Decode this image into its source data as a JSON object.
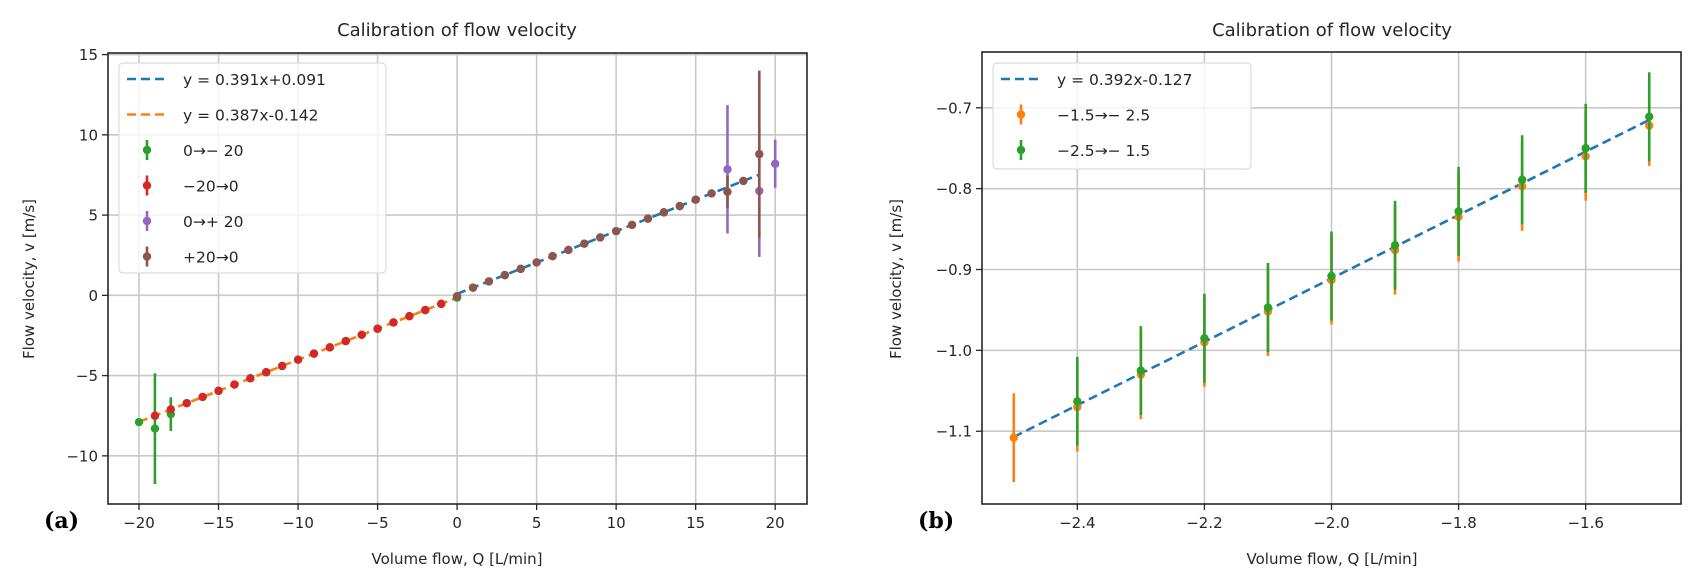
{
  "chart_data": [
    {
      "panel_label": "(a)",
      "type": "scatter",
      "title": "Calibration of flow velocity",
      "xlabel": "Volume flow, Q [L/min]",
      "ylabel": "Flow velocity, v [m/s]",
      "xlim": [
        -21.95,
        22.0
      ],
      "ylim": [
        -13.0,
        15.1
      ],
      "xticks": [
        -20,
        -15,
        -10,
        -5,
        0,
        5,
        10,
        15,
        20
      ],
      "xtick_labels": [
        "−20",
        "−15",
        "−10",
        "−5",
        "0",
        "5",
        "10",
        "15",
        "20"
      ],
      "yticks": [
        -10,
        -5,
        0,
        5,
        10,
        15
      ],
      "ytick_labels": [
        "−10",
        "−5",
        "0",
        "5",
        "10",
        "15"
      ],
      "grid": true,
      "legend_position": "upper-left",
      "fit_lines": [
        {
          "name": "y = 0.391x+0.091",
          "slope": 0.391,
          "intercept": 0.091,
          "x_range": [
            0,
            19
          ],
          "color": "#1f77b4"
        },
        {
          "name": "y = 0.387x-0.142",
          "slope": 0.387,
          "intercept": -0.142,
          "x_range": [
            -20,
            0
          ],
          "color": "#ff7f0e"
        }
      ],
      "series": [
        {
          "name": "0→− 20",
          "color": "#2ca02c",
          "points": [
            {
              "x": -20,
              "y": -7.9,
              "err": 0
            },
            {
              "x": -19,
              "y": -8.3,
              "err": 3.45
            },
            {
              "x": -18,
              "y": -7.4,
              "err": 1.05
            },
            {
              "x": -17,
              "y": -6.72,
              "err": 0
            },
            {
              "x": -16,
              "y": -6.33,
              "err": 0
            },
            {
              "x": -15,
              "y": -5.95,
              "err": 0
            },
            {
              "x": -14,
              "y": -5.56,
              "err": 0
            },
            {
              "x": -13,
              "y": -5.17,
              "err": 0
            },
            {
              "x": -12,
              "y": -4.79,
              "err": 0
            },
            {
              "x": -11,
              "y": -4.4,
              "err": 0
            },
            {
              "x": -10,
              "y": -4.01,
              "err": 0
            },
            {
              "x": -9,
              "y": -3.63,
              "err": 0
            },
            {
              "x": -8,
              "y": -3.24,
              "err": 0
            },
            {
              "x": -7,
              "y": -2.85,
              "err": 0
            },
            {
              "x": -6,
              "y": -2.46,
              "err": 0
            },
            {
              "x": -5,
              "y": -2.08,
              "err": 0
            },
            {
              "x": -4,
              "y": -1.69,
              "err": 0
            },
            {
              "x": -3,
              "y": -1.3,
              "err": 0
            },
            {
              "x": -2,
              "y": -0.92,
              "err": 0
            },
            {
              "x": -1,
              "y": -0.53,
              "err": 0
            },
            {
              "x": 0,
              "y": -0.14,
              "err": 0
            }
          ]
        },
        {
          "name": "−20→0",
          "color": "#d62728",
          "points": [
            {
              "x": -19,
              "y": -7.5,
              "err": 0
            },
            {
              "x": -18,
              "y": -7.1,
              "err": 0
            },
            {
              "x": -17,
              "y": -6.72,
              "err": 0
            },
            {
              "x": -16,
              "y": -6.33,
              "err": 0
            },
            {
              "x": -15,
              "y": -5.95,
              "err": 0
            },
            {
              "x": -14,
              "y": -5.56,
              "err": 0
            },
            {
              "x": -13,
              "y": -5.17,
              "err": 0
            },
            {
              "x": -12,
              "y": -4.79,
              "err": 0
            },
            {
              "x": -11,
              "y": -4.4,
              "err": 0
            },
            {
              "x": -10,
              "y": -4.01,
              "err": 0
            },
            {
              "x": -9,
              "y": -3.63,
              "err": 0
            },
            {
              "x": -8,
              "y": -3.24,
              "err": 0
            },
            {
              "x": -7,
              "y": -2.85,
              "err": 0
            },
            {
              "x": -6,
              "y": -2.46,
              "err": 0
            },
            {
              "x": -5,
              "y": -2.08,
              "err": 0
            },
            {
              "x": -4,
              "y": -1.69,
              "err": 0
            },
            {
              "x": -3,
              "y": -1.3,
              "err": 0
            },
            {
              "x": -2,
              "y": -0.92,
              "err": 0
            },
            {
              "x": -1,
              "y": -0.53,
              "err": 0
            }
          ]
        },
        {
          "name": "0→+ 20",
          "color": "#9467bd",
          "points": [
            {
              "x": 1,
              "y": 0.48,
              "err": 0
            },
            {
              "x": 2,
              "y": 0.87,
              "err": 0
            },
            {
              "x": 3,
              "y": 1.26,
              "err": 0
            },
            {
              "x": 4,
              "y": 1.65,
              "err": 0
            },
            {
              "x": 5,
              "y": 2.05,
              "err": 0
            },
            {
              "x": 6,
              "y": 2.44,
              "err": 0
            },
            {
              "x": 7,
              "y": 2.83,
              "err": 0
            },
            {
              "x": 8,
              "y": 3.22,
              "err": 0
            },
            {
              "x": 9,
              "y": 3.61,
              "err": 0
            },
            {
              "x": 10,
              "y": 4.0,
              "err": 0
            },
            {
              "x": 11,
              "y": 4.39,
              "err": 0
            },
            {
              "x": 12,
              "y": 4.78,
              "err": 0
            },
            {
              "x": 13,
              "y": 5.17,
              "err": 0
            },
            {
              "x": 14,
              "y": 5.56,
              "err": 0
            },
            {
              "x": 15,
              "y": 5.96,
              "err": 0
            },
            {
              "x": 16,
              "y": 6.35,
              "err": 0
            },
            {
              "x": 17,
              "y": 7.85,
              "err": 4.0
            },
            {
              "x": 18,
              "y": 7.13,
              "err": 0
            },
            {
              "x": 19,
              "y": 6.5,
              "err": 4.1
            },
            {
              "x": 20,
              "y": 8.2,
              "err": 1.5
            }
          ]
        },
        {
          "name": "+20→0",
          "color": "#8c564b",
          "points": [
            {
              "x": 0,
              "y": -0.05,
              "err": 0
            },
            {
              "x": 1,
              "y": 0.48,
              "err": 0
            },
            {
              "x": 2,
              "y": 0.87,
              "err": 0
            },
            {
              "x": 3,
              "y": 1.26,
              "err": 0
            },
            {
              "x": 4,
              "y": 1.65,
              "err": 0
            },
            {
              "x": 5,
              "y": 2.05,
              "err": 0
            },
            {
              "x": 6,
              "y": 2.44,
              "err": 0
            },
            {
              "x": 7,
              "y": 2.83,
              "err": 0
            },
            {
              "x": 8,
              "y": 3.22,
              "err": 0
            },
            {
              "x": 9,
              "y": 3.61,
              "err": 0
            },
            {
              "x": 10,
              "y": 4.0,
              "err": 0
            },
            {
              "x": 11,
              "y": 4.39,
              "err": 0
            },
            {
              "x": 12,
              "y": 4.78,
              "err": 0
            },
            {
              "x": 13,
              "y": 5.17,
              "err": 0
            },
            {
              "x": 14,
              "y": 5.56,
              "err": 0
            },
            {
              "x": 15,
              "y": 5.96,
              "err": 0
            },
            {
              "x": 16,
              "y": 6.35,
              "err": 0
            },
            {
              "x": 17,
              "y": 6.45,
              "err": 1.0
            },
            {
              "x": 18,
              "y": 7.13,
              "err": 0
            },
            {
              "x": 19,
              "y": 8.8,
              "err": 5.2
            }
          ]
        }
      ]
    },
    {
      "panel_label": "(b)",
      "type": "scatter",
      "title": "Calibration of flow velocity",
      "xlabel": "Volume flow, Q [L/min]",
      "ylabel": "Flow velocity, v [m/s]",
      "xlim": [
        -2.55,
        -1.45
      ],
      "ylim": [
        -1.19,
        -0.631
      ],
      "xticks": [
        -2.4,
        -2.2,
        -2.0,
        -1.8,
        -1.6
      ],
      "xtick_labels": [
        "−2.4",
        "−2.2",
        "−2.0",
        "−1.8",
        "−1.6"
      ],
      "yticks": [
        -1.1,
        -1.0,
        -0.9,
        -0.8,
        -0.7
      ],
      "ytick_labels": [
        "−1.1",
        "−1.0",
        "−0.9",
        "−0.8",
        "−0.7"
      ],
      "grid": true,
      "legend_position": "upper-left",
      "fit_lines": [
        {
          "name": "y = 0.392x-0.127",
          "slope": 0.392,
          "intercept": -0.127,
          "x_range": [
            -2.5,
            -1.5
          ],
          "color": "#1f77b4"
        }
      ],
      "series": [
        {
          "name": "−1.5→− 2.5",
          "color": "#ff7f0e",
          "points": [
            {
              "x": -2.5,
              "y": -1.108,
              "err": 0.055
            },
            {
              "x": -2.4,
              "y": -1.07,
              "err": 0.055
            },
            {
              "x": -2.3,
              "y": -1.03,
              "err": 0.055
            },
            {
              "x": -2.2,
              "y": -0.99,
              "err": 0.055
            },
            {
              "x": -2.1,
              "y": -0.952,
              "err": 0.055
            },
            {
              "x": -2.0,
              "y": -0.913,
              "err": 0.055
            },
            {
              "x": -1.9,
              "y": -0.876,
              "err": 0.055
            },
            {
              "x": -1.8,
              "y": -0.835,
              "err": 0.055
            },
            {
              "x": -1.7,
              "y": -0.797,
              "err": 0.055
            },
            {
              "x": -1.6,
              "y": -0.76,
              "err": 0.055
            },
            {
              "x": -1.5,
              "y": -0.722,
              "err": 0.05
            }
          ]
        },
        {
          "name": "−2.5→− 1.5",
          "color": "#2ca02c",
          "points": [
            {
              "x": -2.4,
              "y": -1.063,
              "err": 0.055
            },
            {
              "x": -2.3,
              "y": -1.025,
              "err": 0.055
            },
            {
              "x": -2.2,
              "y": -0.985,
              "err": 0.055
            },
            {
              "x": -2.1,
              "y": -0.947,
              "err": 0.055
            },
            {
              "x": -2.0,
              "y": -0.908,
              "err": 0.055
            },
            {
              "x": -1.9,
              "y": -0.87,
              "err": 0.055
            },
            {
              "x": -1.8,
              "y": -0.828,
              "err": 0.055
            },
            {
              "x": -1.7,
              "y": -0.789,
              "err": 0.055
            },
            {
              "x": -1.6,
              "y": -0.75,
              "err": 0.055
            },
            {
              "x": -1.5,
              "y": -0.711,
              "err": 0.055
            }
          ]
        }
      ]
    }
  ]
}
